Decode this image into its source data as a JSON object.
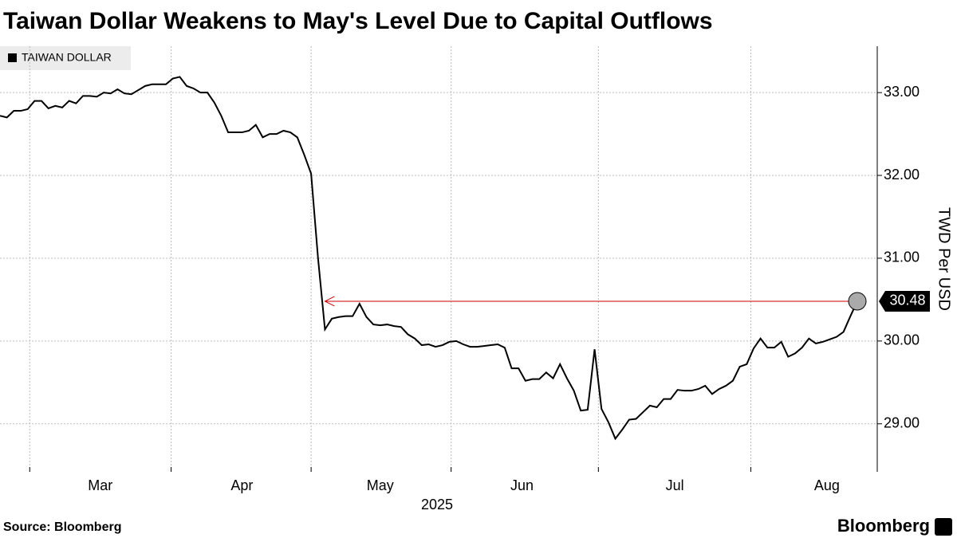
{
  "chart_data": {
    "type": "line",
    "title": "Taiwan Dollar Weakens to May's Level Due to Capital Outflows",
    "series": [
      {
        "name": "TAIWAN DOLLAR",
        "color": "#000000",
        "values": [
          32.72,
          32.7,
          32.78,
          32.78,
          32.8,
          32.9,
          32.9,
          32.81,
          32.84,
          32.82,
          32.9,
          32.87,
          32.96,
          32.96,
          32.95,
          33.0,
          32.99,
          33.04,
          32.99,
          32.98,
          33.03,
          33.08,
          33.1,
          33.1,
          33.1,
          33.17,
          33.19,
          33.08,
          33.05,
          33.0,
          33.0,
          32.88,
          32.72,
          32.52,
          32.52,
          32.52,
          32.54,
          32.61,
          32.46,
          32.5,
          32.5,
          32.54,
          32.52,
          32.46,
          32.25,
          32.02,
          31.0,
          30.14,
          30.27,
          30.29,
          30.3,
          30.3,
          30.45,
          30.29,
          30.2,
          30.19,
          30.2,
          30.18,
          30.17,
          30.08,
          30.03,
          29.95,
          29.96,
          29.93,
          29.95,
          29.99,
          30.0,
          29.96,
          29.93,
          29.93,
          29.94,
          29.95,
          29.96,
          29.92,
          29.67,
          29.67,
          29.52,
          29.54,
          29.54,
          29.62,
          29.55,
          29.72,
          29.55,
          29.4,
          29.16,
          29.17,
          29.9,
          29.18,
          29.02,
          28.82,
          28.93,
          29.05,
          29.06,
          29.14,
          29.22,
          29.2,
          29.3,
          29.3,
          29.41,
          29.4,
          29.4,
          29.42,
          29.46,
          29.36,
          29.42,
          29.46,
          29.52,
          29.69,
          29.72,
          29.91,
          30.03,
          29.92,
          29.92,
          29.99,
          29.81,
          29.85,
          29.92,
          30.03,
          29.97,
          29.99,
          30.02,
          30.05,
          30.11,
          30.3,
          30.48
        ]
      }
    ],
    "xticks": [
      {
        "value": 14.5,
        "label": "Mar"
      },
      {
        "value": 35,
        "label": "Apr"
      },
      {
        "value": 55,
        "label": "May"
      },
      {
        "value": 75.5,
        "label": "Jun"
      },
      {
        "value": 97.6,
        "label": "Jul"
      },
      {
        "value": 119.6,
        "label": "Aug"
      }
    ],
    "xlabel": "2025",
    "ylim": [
      28.42,
      33.56
    ],
    "yticks": [
      {
        "value": 29,
        "label": "29.00"
      },
      {
        "value": 30,
        "label": "30.00"
      },
      {
        "value": 31,
        "label": "31.00"
      },
      {
        "value": 32,
        "label": "32.00"
      },
      {
        "value": 33,
        "label": "33.00"
      }
    ],
    "ylabel": "TWD Per USD",
    "grid": true,
    "annotation_color": "#cc0000",
    "source": "Source: Bloomberg",
    "brand": "Bloomberg"
  }
}
